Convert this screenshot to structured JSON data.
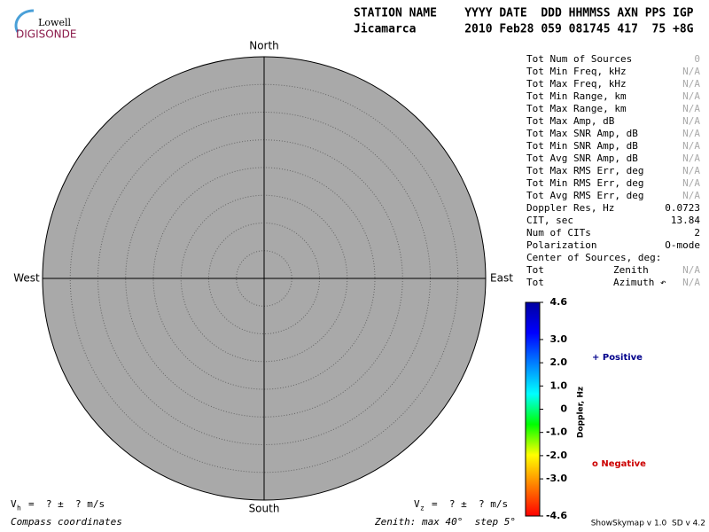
{
  "logo": {
    "line1": "Lowell",
    "line2": "DIGISONDE"
  },
  "header": {
    "labels": "STATION NAME    YYYY DATE  DDD HHMMSS AXN PPS IGP",
    "values": "Jicamarca       2010 Feb28 059 081745 417  75 +8G"
  },
  "stats": {
    "rows": [
      {
        "label": "Tot Num of Sources",
        "value": "0",
        "muted": true
      },
      {
        "label": "Tot Min Freq, kHz",
        "value": "N/A",
        "muted": true
      },
      {
        "label": "Tot Max Freq, kHz",
        "value": "N/A",
        "muted": true
      },
      {
        "label": "Tot Min Range, km",
        "value": "N/A",
        "muted": true
      },
      {
        "label": "Tot Max Range, km",
        "value": "N/A",
        "muted": true
      },
      {
        "label": "Tot Max Amp, dB",
        "value": "N/A",
        "muted": true
      },
      {
        "label": "Tot Max SNR Amp, dB",
        "value": "N/A",
        "muted": true
      },
      {
        "label": "Tot Min SNR Amp, dB",
        "value": "N/A",
        "muted": true
      },
      {
        "label": "Tot Avg SNR Amp, dB",
        "value": "N/A",
        "muted": true
      },
      {
        "label": "Tot Max RMS Err, deg",
        "value": "N/A",
        "muted": true
      },
      {
        "label": "Tot Min RMS Err, deg",
        "value": "N/A",
        "muted": true
      },
      {
        "label": "Tot Avg RMS Err, deg",
        "value": "N/A",
        "muted": true
      },
      {
        "label": "Doppler Res, Hz",
        "value": "0.0723",
        "muted": false
      },
      {
        "label": "CIT, sec",
        "value": "13.84",
        "muted": false
      },
      {
        "label": "Num of CITs",
        "value": "2",
        "muted": false
      },
      {
        "label": "Polarization",
        "value": "O-mode",
        "muted": false
      },
      {
        "label": "Center of Sources, deg:"
      },
      {
        "label": "Tot",
        "sub": "Zenith",
        "value": "N/A",
        "muted": true
      },
      {
        "label": "Tot",
        "sub": "Azimuth ↶",
        "value": "N/A",
        "muted": true
      }
    ]
  },
  "chart_data": {
    "type": "polar",
    "directions": {
      "north": "North",
      "south": "South",
      "east": "East",
      "west": "West"
    },
    "rlim": [
      0,
      40
    ],
    "rticks": [
      5,
      10,
      15,
      20,
      25,
      30,
      35
    ],
    "fill": "#a9a9a9",
    "colorbar": {
      "label": "Doppler, Hz",
      "clim": [
        -4.6,
        4.6
      ],
      "colors": [
        "#ff0000",
        "#ff8000",
        "#ffff00",
        "#00ff00",
        "#00ffff",
        "#0080ff",
        "#0000ff",
        "#0000a0"
      ],
      "ticks": [
        4.6,
        {
          "value": 3,
          "label": "3.0"
        },
        {
          "value": 2,
          "label": "2.0"
        },
        {
          "value": 1,
          "label": "1.0"
        },
        0,
        {
          "value": -1,
          "label": "-1.0"
        },
        {
          "value": -2,
          "label": "-2.0"
        },
        {
          "value": -3,
          "label": "-3.0"
        },
        -4.6
      ]
    },
    "legend": {
      "positive": "+ Positive",
      "negative": "o Negative"
    }
  },
  "footer": {
    "vh": {
      "symbol": "V",
      "sub": "h",
      "text": "=  ? ±  ? m/s"
    },
    "vz": {
      "symbol": "V",
      "sub": "z",
      "text": "=  ? ±  ? m/s"
    },
    "coords": "Compass coordinates",
    "zenith": "Zenith: max 40°  step 5°",
    "version": "ShowSkymap v 1.0  SD v 4.2"
  }
}
